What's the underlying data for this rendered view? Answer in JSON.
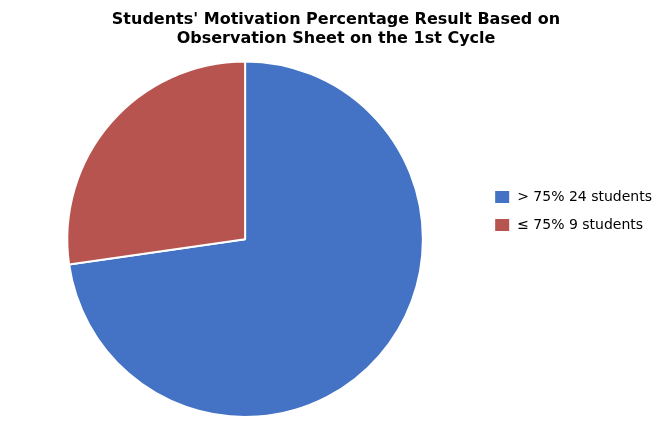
{
  "chart_data": {
    "type": "pie",
    "title": [
      "Students' Motivation Percentage Result Based on",
      "Observation Sheet on the 1st Cycle"
    ],
    "categories": [
      "> 75% 24 students",
      "≤ 75% 9 students"
    ],
    "values": [
      24,
      9
    ],
    "colors": [
      "#4472C4",
      "#B85450"
    ],
    "legend": "right"
  }
}
